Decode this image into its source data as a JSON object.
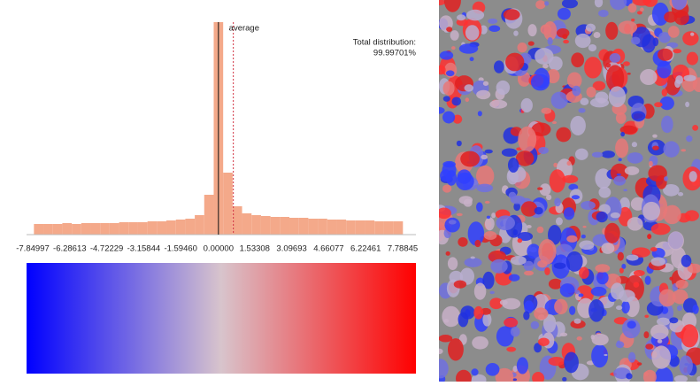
{
  "chart_data": {
    "type": "histogram",
    "bins": [
      -7.8,
      -7.4,
      -7.0,
      -6.6,
      -6.2,
      -5.8,
      -5.4,
      -5.0,
      -4.6,
      -4.2,
      -3.8,
      -3.4,
      -3.0,
      -2.6,
      -2.2,
      -1.8,
      -1.4,
      -1.0,
      -0.6,
      -0.2,
      0.2,
      0.6,
      1.0,
      1.4,
      1.8,
      2.2,
      2.6,
      3.0,
      3.4,
      3.8,
      4.2,
      4.6,
      5.0,
      5.4,
      5.8,
      6.2,
      6.6,
      7.0,
      7.4,
      7.8
    ],
    "values": [
      12,
      12,
      12,
      13,
      12,
      13,
      13,
      13,
      13,
      14,
      14,
      14,
      15,
      15,
      16,
      17,
      18,
      22,
      45,
      240,
      70,
      32,
      24,
      22,
      21,
      20,
      20,
      19,
      19,
      18,
      18,
      17,
      17,
      16,
      16,
      16,
      15,
      15,
      15
    ],
    "color": "#f4a98a",
    "xlim": [
      -7.84997,
      7.78845
    ],
    "xticks": [
      -7.84997,
      -6.28613,
      -4.72229,
      -3.15844,
      {
        "value": -1.5946,
        "label": "-1.59460"
      },
      {
        "value": 0,
        "label": "0.00000"
      },
      1.53308,
      3.09693,
      4.66077,
      6.22461,
      7.78845
    ],
    "average": {
      "label": "average",
      "value": 0.63,
      "color": "#d03040"
    },
    "total_distribution_label": "Total distribution:",
    "total_distribution": "99.99701%",
    "colorbar": {
      "colors": [
        "#0000ff",
        "#d8c4cc",
        "#ff0000"
      ]
    }
  }
}
